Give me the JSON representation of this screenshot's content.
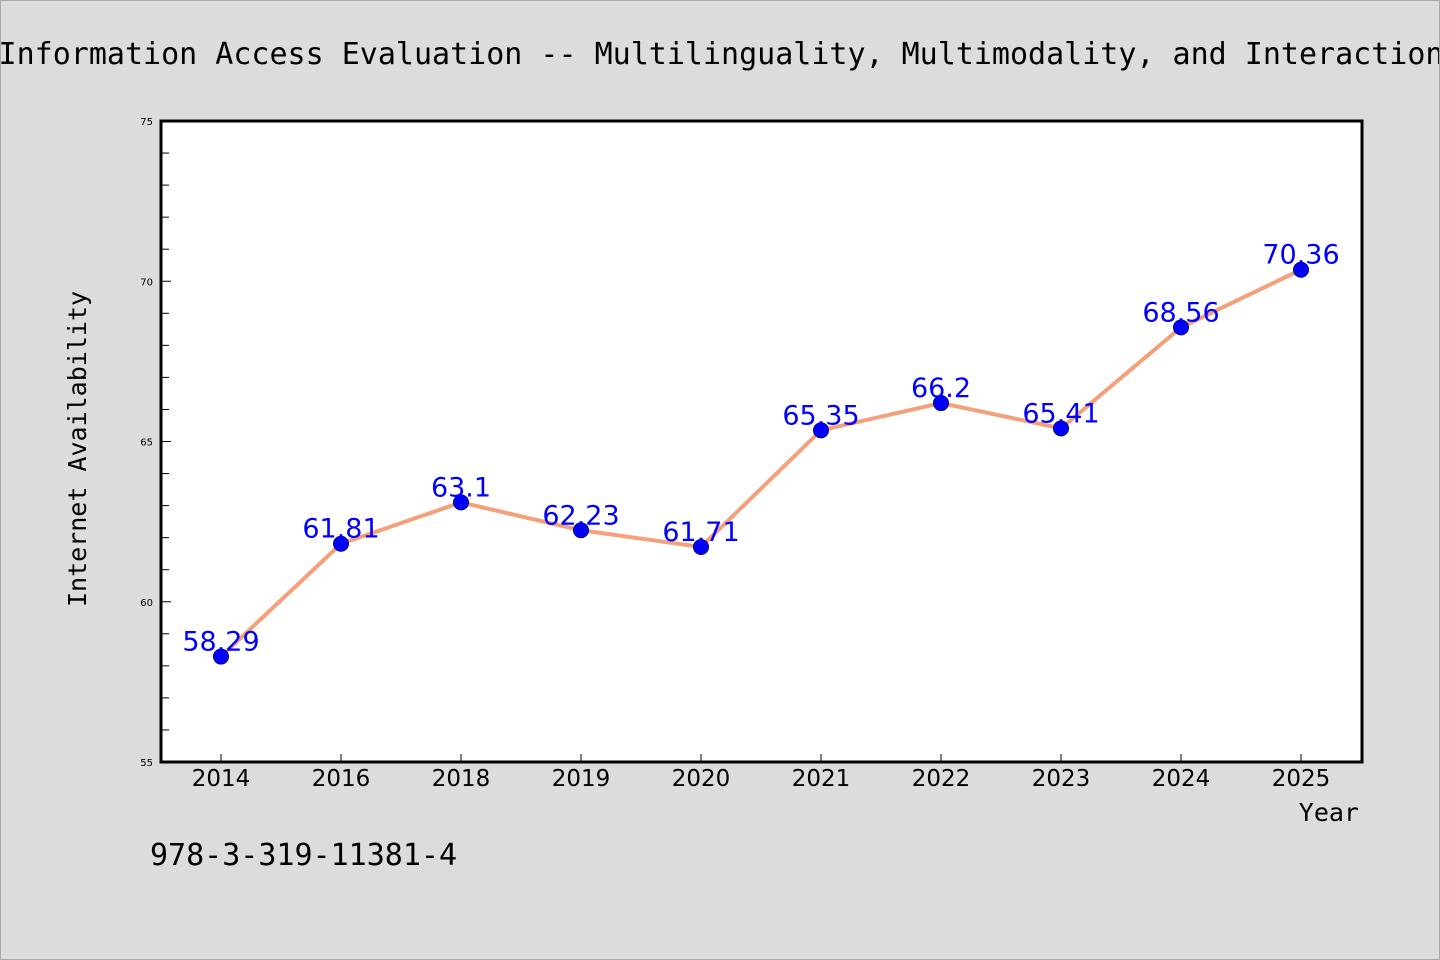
{
  "chart_data": {
    "type": "line",
    "title": "Information Access Evaluation -- Multilinguality, Multimodality, and Interaction",
    "xlabel": "Year",
    "ylabel": "Internet Availability",
    "categories": [
      "2014",
      "2016",
      "2018",
      "2019",
      "2020",
      "2021",
      "2022",
      "2023",
      "2024",
      "2025"
    ],
    "series": [
      {
        "values": [
          58.29,
          61.81,
          63.1,
          62.23,
          61.71,
          65.35,
          66.2,
          65.41,
          68.56,
          70.36
        ],
        "data_labels": [
          "58.29",
          "61.81",
          "63.1",
          "62.23",
          "61.71",
          "65.35",
          "66.2",
          "65.41",
          "68.56",
          "70.36"
        ],
        "line_color": "#f4a07a",
        "marker_color": "#0000ff"
      }
    ],
    "ylim": [
      55,
      75
    ],
    "yticks": [
      55,
      60,
      65,
      70,
      75
    ],
    "grid": false,
    "legend": "none"
  },
  "footer": {
    "isbn": "978-3-319-11381-4"
  },
  "colors": {
    "background": "#dcdcdc",
    "plot_background": "#ffffff",
    "label_color": "#0000ff"
  }
}
